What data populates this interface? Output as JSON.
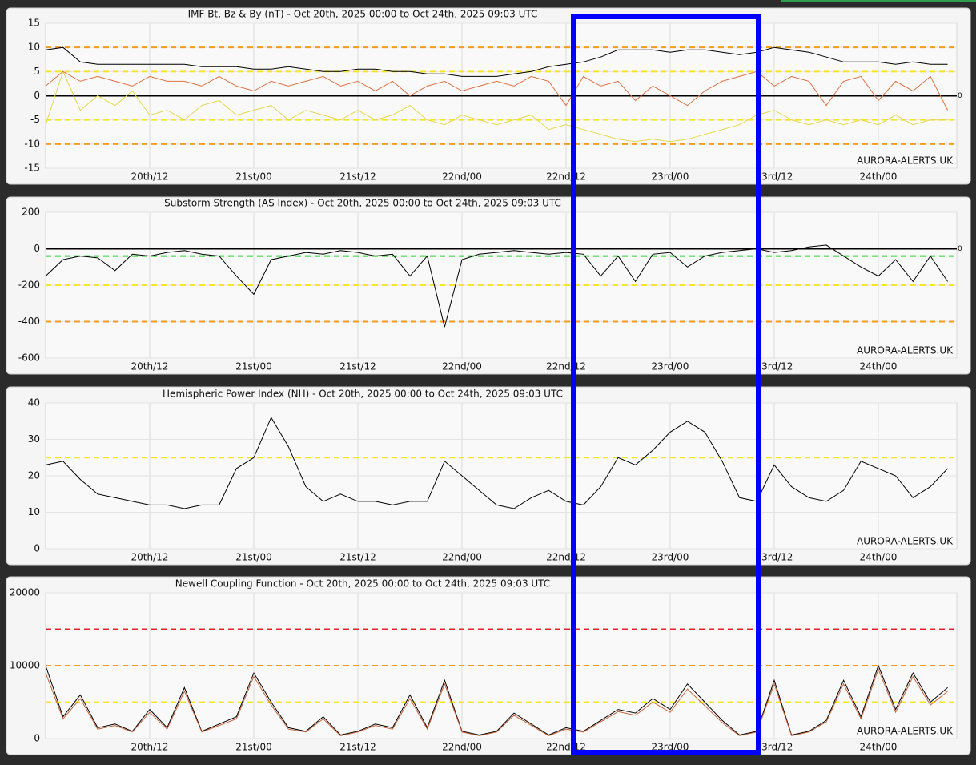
{
  "chart_data": [
    {
      "type": "line",
      "title": "IMF Bt, Bz & By (nT) - Oct 20th, 2025 00:00 to Oct 24th, 2025 09:03 UTC",
      "annotation": "AURORA-ALERTS.UK",
      "x": [
        0,
        2,
        4,
        6,
        8,
        10,
        12,
        14,
        16,
        18,
        20,
        22,
        24,
        26,
        28,
        30,
        32,
        34,
        36,
        38,
        40,
        42,
        44,
        46,
        48,
        50,
        52,
        54,
        56,
        58,
        60,
        62,
        64,
        66,
        68,
        70,
        72,
        74,
        76,
        78,
        80,
        82,
        84,
        86,
        88,
        90,
        92,
        94,
        96,
        98,
        100,
        102,
        104
      ],
      "xlim": [
        0,
        105.05
      ],
      "xticks": [
        {
          "value": 12,
          "label": "20th/12"
        },
        {
          "value": 24,
          "label": "21st/00"
        },
        {
          "value": 36,
          "label": "21st/12"
        },
        {
          "value": 48,
          "label": "22nd/00"
        },
        {
          "value": 60,
          "label": "22nd/12"
        },
        {
          "value": 72,
          "label": "23rd/00"
        },
        {
          "value": 84,
          "label": "23rd/12"
        },
        {
          "value": 96,
          "label": "24th/00"
        }
      ],
      "ylim": [
        -15,
        15
      ],
      "yticks": [
        -15,
        -10,
        -5,
        0,
        5,
        10,
        15
      ],
      "y2lim": [
        -15,
        15
      ],
      "y2ticks": [
        0
      ],
      "grid": true,
      "hlines": [
        {
          "value": 10,
          "color": "#f39c1f",
          "dashed": true
        },
        {
          "value": 5,
          "color": "#f5e62a",
          "dashed": true
        },
        {
          "value": -5,
          "color": "#f5e62a",
          "dashed": true
        },
        {
          "value": -10,
          "color": "#f39c1f",
          "dashed": true
        },
        {
          "value": 0,
          "color": "#000000",
          "dashed": false
        }
      ],
      "series": [
        {
          "color": "#e4d84a",
          "values": [
            -6,
            5,
            -3,
            0,
            -2,
            1,
            -4,
            -3,
            -5,
            -2,
            -1,
            -4,
            -3,
            -2,
            -5,
            -3,
            -4,
            -5,
            -3,
            -5,
            -4,
            -2,
            -5,
            -6,
            -4,
            -5,
            -6,
            -5,
            -4,
            -7,
            -6,
            -7,
            -8,
            -9,
            -9.5,
            -9,
            -9.5,
            -9,
            -8,
            -7,
            -6,
            -4,
            -3,
            -5,
            -6,
            -5,
            -6,
            -5,
            -6,
            -4,
            -6,
            -5,
            -5
          ]
        },
        {
          "color": "#e07040",
          "values": [
            2,
            5,
            3,
            4,
            3,
            2,
            4,
            3,
            3,
            2,
            4,
            2,
            1,
            3,
            2,
            3,
            4,
            2,
            3,
            1,
            3,
            0,
            2,
            3,
            1,
            2,
            3,
            2,
            4,
            3,
            -2,
            4,
            2,
            3,
            -1,
            2,
            0,
            -2,
            1,
            3,
            4,
            5,
            2,
            4,
            3,
            -2,
            3,
            4,
            -1,
            3,
            1,
            4,
            -3
          ]
        },
        {
          "color": "#000000",
          "values": [
            9.5,
            10,
            7,
            6.5,
            6.5,
            6.5,
            6.5,
            6.5,
            6.5,
            6,
            6,
            6,
            5.5,
            5.5,
            6,
            5.5,
            5,
            5,
            5.5,
            5.5,
            5,
            5,
            4.5,
            4.5,
            4,
            4,
            4,
            4.5,
            5,
            6,
            6.5,
            7,
            8,
            9.5,
            9.5,
            9.5,
            9,
            9.5,
            9.5,
            9,
            8.5,
            9,
            10,
            9.5,
            9,
            8,
            7,
            7,
            7,
            6.5,
            7,
            6.5,
            6.5
          ]
        }
      ]
    },
    {
      "type": "line",
      "title": "Substorm Strength (AS Index) - Oct 20th, 2025 00:00 to Oct 24th, 2025 09:03 UTC",
      "annotation": "AURORA-ALERTS.UK",
      "x": [
        0,
        2,
        4,
        6,
        8,
        10,
        12,
        14,
        16,
        18,
        20,
        22,
        24,
        26,
        28,
        30,
        32,
        34,
        36,
        38,
        40,
        42,
        44,
        46,
        48,
        50,
        52,
        54,
        56,
        58,
        60,
        62,
        64,
        66,
        68,
        70,
        72,
        74,
        76,
        78,
        80,
        82,
        84,
        86,
        88,
        90,
        92,
        94,
        96,
        98,
        100,
        102,
        104
      ],
      "xlim": [
        0,
        105.05
      ],
      "xticks": [
        {
          "value": 12,
          "label": "20th/12"
        },
        {
          "value": 24,
          "label": "21st/00"
        },
        {
          "value": 36,
          "label": "21st/12"
        },
        {
          "value": 48,
          "label": "22nd/00"
        },
        {
          "value": 60,
          "label": "22nd/12"
        },
        {
          "value": 72,
          "label": "23rd/00"
        },
        {
          "value": 84,
          "label": "23rd/12"
        },
        {
          "value": 96,
          "label": "24th/00"
        }
      ],
      "ylim": [
        -600,
        200
      ],
      "yticks": [
        -600,
        -400,
        -200,
        0,
        200
      ],
      "y2lim": [
        -600,
        200
      ],
      "y2ticks": [
        0
      ],
      "grid": true,
      "hlines": [
        {
          "value": -40,
          "color": "#2bd62b",
          "dashed": true
        },
        {
          "value": -200,
          "color": "#f5e62a",
          "dashed": true
        },
        {
          "value": -400,
          "color": "#f39c1f",
          "dashed": true
        },
        {
          "value": 0,
          "color": "#000000",
          "dashed": false
        }
      ],
      "series": [
        {
          "color": "#000000",
          "values": [
            -150,
            -60,
            -40,
            -50,
            -120,
            -30,
            -40,
            -20,
            -10,
            -30,
            -40,
            -150,
            -250,
            -60,
            -40,
            -20,
            -30,
            -10,
            -20,
            -40,
            -30,
            -150,
            -40,
            -430,
            -60,
            -30,
            -20,
            -10,
            -20,
            -30,
            -20,
            -30,
            -150,
            -40,
            -180,
            -30,
            -20,
            -100,
            -40,
            -20,
            -10,
            0,
            -20,
            -10,
            10,
            20,
            -40,
            -100,
            -150,
            -60,
            -180,
            -40,
            -180
          ]
        }
      ]
    },
    {
      "type": "line",
      "title": "Hemispheric Power Index (NH) - Oct 20th, 2025 00:00 to Oct 24th, 2025 09:03 UTC",
      "annotation": "AURORA-ALERTS.UK",
      "x": [
        0,
        2,
        4,
        6,
        8,
        10,
        12,
        14,
        16,
        18,
        20,
        22,
        24,
        26,
        28,
        30,
        32,
        34,
        36,
        38,
        40,
        42,
        44,
        46,
        48,
        50,
        52,
        54,
        56,
        58,
        60,
        62,
        64,
        66,
        68,
        70,
        72,
        74,
        76,
        78,
        80,
        82,
        84,
        86,
        88,
        90,
        92,
        94,
        96,
        98,
        100,
        102,
        104
      ],
      "xlim": [
        0,
        105.05
      ],
      "xticks": [
        {
          "value": 12,
          "label": "20th/12"
        },
        {
          "value": 24,
          "label": "21st/00"
        },
        {
          "value": 36,
          "label": "21st/12"
        },
        {
          "value": 48,
          "label": "22nd/00"
        },
        {
          "value": 60,
          "label": "22nd/12"
        },
        {
          "value": 72,
          "label": "23rd/00"
        },
        {
          "value": 84,
          "label": "23rd/12"
        },
        {
          "value": 96,
          "label": "24th/00"
        }
      ],
      "ylim": [
        0,
        40
      ],
      "yticks": [
        0,
        10,
        20,
        30,
        40
      ],
      "grid": true,
      "hlines": [
        {
          "value": 25,
          "color": "#f5e62a",
          "dashed": true
        }
      ],
      "series": [
        {
          "color": "#000000",
          "values": [
            23,
            24,
            19,
            15,
            14,
            13,
            12,
            12,
            11,
            12,
            12,
            22,
            25,
            36,
            28,
            17,
            13,
            15,
            13,
            13,
            12,
            13,
            13,
            24,
            20,
            16,
            12,
            11,
            14,
            16,
            13,
            12,
            17,
            25,
            23,
            27,
            32,
            35,
            32,
            24,
            14,
            13,
            23,
            17,
            14,
            13,
            16,
            24,
            22,
            20,
            14,
            17,
            22
          ]
        }
      ]
    },
    {
      "type": "line",
      "title": "Newell Coupling Function - Oct 20th, 2025 00:00 to Oct 24th, 2025 09:03 UTC",
      "annotation": "AURORA-ALERTS.UK",
      "x": [
        0,
        2,
        4,
        6,
        8,
        10,
        12,
        14,
        16,
        18,
        20,
        22,
        24,
        26,
        28,
        30,
        32,
        34,
        36,
        38,
        40,
        42,
        44,
        46,
        48,
        50,
        52,
        54,
        56,
        58,
        60,
        62,
        64,
        66,
        68,
        70,
        72,
        74,
        76,
        78,
        80,
        82,
        84,
        86,
        88,
        90,
        92,
        94,
        96,
        98,
        100,
        102,
        104
      ],
      "xlim": [
        0,
        105.05
      ],
      "xticks": [
        {
          "value": 12,
          "label": "20th/12"
        },
        {
          "value": 24,
          "label": "21st/00"
        },
        {
          "value": 36,
          "label": "21st/12"
        },
        {
          "value": 48,
          "label": "22nd/00"
        },
        {
          "value": 60,
          "label": "22nd/12"
        },
        {
          "value": 72,
          "label": "23rd/00"
        },
        {
          "value": 84,
          "label": "23rd/12"
        },
        {
          "value": 96,
          "label": "24th/00"
        }
      ],
      "ylim": [
        0,
        20000
      ],
      "yticks": [
        0,
        10000,
        20000
      ],
      "grid": true,
      "hlines": [
        {
          "value": 15000,
          "color": "#e8232a",
          "dashed": true
        },
        {
          "value": 10000,
          "color": "#f39c1f",
          "dashed": true
        },
        {
          "value": 5000,
          "color": "#f5e62a",
          "dashed": true
        }
      ],
      "series": [
        {
          "color": "#000000",
          "values": [
            10000,
            3000,
            6000,
            1500,
            2000,
            1000,
            4000,
            1500,
            7000,
            1000,
            2000,
            3000,
            9000,
            5000,
            1500,
            1000,
            3000,
            500,
            1000,
            2000,
            1500,
            6000,
            1500,
            8000,
            1000,
            500,
            1000,
            3500,
            2000,
            500,
            1500,
            1000,
            2500,
            4000,
            3500,
            5500,
            4000,
            7500,
            5000,
            2500,
            500,
            1000,
            8000,
            500,
            1000,
            2500,
            8000,
            3000,
            10000,
            4000,
            9000,
            5000,
            7000
          ]
        },
        {
          "color": "#c8643a",
          "values": [
            9000,
            2700,
            5500,
            1300,
            1800,
            900,
            3600,
            1300,
            6500,
            900,
            1800,
            2700,
            8500,
            4600,
            1300,
            900,
            2700,
            400,
            900,
            1800,
            1300,
            5500,
            1300,
            7500,
            900,
            400,
            900,
            3200,
            1800,
            400,
            1300,
            900,
            2300,
            3700,
            3200,
            5000,
            3600,
            6800,
            4500,
            2200,
            400,
            900,
            7500,
            400,
            900,
            2300,
            7500,
            2700,
            9500,
            3600,
            8500,
            4600,
            6500
          ]
        }
      ]
    }
  ]
}
